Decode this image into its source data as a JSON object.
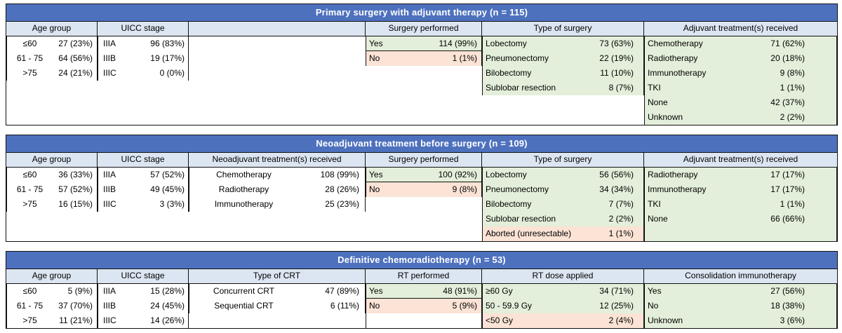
{
  "colors": {
    "title_bg": "#4E71BE",
    "title_text": "#FFFFFF",
    "subheader_bg": "#DCE6F2",
    "green_cell": "#E3EFDA",
    "red_cell": "#FBE3D5",
    "border": "#111111"
  },
  "panels": [
    {
      "id": "primary-surgery",
      "title": "Primary surgery with adjuvant therapy (n = 115)",
      "row_slots": 6,
      "blocks": [
        {
          "header": "Age group",
          "rows": [
            {
              "label": "≤60",
              "value": "27 (23%)",
              "bg": "plain"
            },
            {
              "label": "61 - 75",
              "value": "64 (56%)",
              "bg": "plain"
            },
            {
              "label": ">75",
              "value": "24 (21%)",
              "bg": "plain"
            }
          ]
        },
        {
          "header": "UICC stage",
          "rows": [
            {
              "label": "IIIA",
              "value": "96 (83%)",
              "bg": "plain"
            },
            {
              "label": "IIIB",
              "value": "19 (17%)",
              "bg": "plain"
            },
            {
              "label": "IIIC",
              "value": "0 (0%)",
              "bg": "plain"
            }
          ]
        },
        {
          "header": "",
          "rows": []
        },
        {
          "header": "Surgery performed",
          "box_first_row": true,
          "rows": [
            {
              "label": "Yes",
              "value": "114 (99%)",
              "bg": "green"
            },
            {
              "label": "No",
              "value": "1 (1%)",
              "bg": "red"
            }
          ]
        },
        {
          "header": "Type of surgery",
          "rows": [
            {
              "label": "Lobectomy",
              "value": "73 (63%)",
              "bg": "green"
            },
            {
              "label": "Pneumonectomy",
              "value": "22 (19%)",
              "bg": "green"
            },
            {
              "label": "Bilobectomy",
              "value": "11 (10%)",
              "bg": "green"
            },
            {
              "label": "Sublobar resection",
              "value": "8 (7%)",
              "bg": "green"
            }
          ]
        },
        {
          "header": "Adjuvant treatment(s) received",
          "rows": [
            {
              "label": "Chemotherapy",
              "value": "71 (62%)",
              "bg": "green"
            },
            {
              "label": "Radiotherapy",
              "value": "20 (18%)",
              "bg": "green"
            },
            {
              "label": "Immunotherapy",
              "value": "9 (8%)",
              "bg": "green"
            },
            {
              "label": "TKI",
              "value": "1 (1%)",
              "bg": "green"
            },
            {
              "label": "None",
              "value": "42 (37%)",
              "bg": "green"
            },
            {
              "label": "Unknown",
              "value": "2 (2%)",
              "bg": "green"
            }
          ]
        }
      ]
    },
    {
      "id": "neoadjuvant",
      "title": "Neoadjuvant treatment before surgery (n = 109)",
      "row_slots": 5,
      "blocks": [
        {
          "header": "Age group",
          "rows": [
            {
              "label": "≤60",
              "value": "36 (33%)",
              "bg": "plain"
            },
            {
              "label": "61 - 75",
              "value": "57 (52%)",
              "bg": "plain"
            },
            {
              "label": ">75",
              "value": "16 (15%)",
              "bg": "plain"
            }
          ]
        },
        {
          "header": "UICC stage",
          "rows": [
            {
              "label": "IIIA",
              "value": "57 (52%)",
              "bg": "plain"
            },
            {
              "label": "IIIB",
              "value": "49 (45%)",
              "bg": "plain"
            },
            {
              "label": "IIIC",
              "value": "3 (3%)",
              "bg": "plain"
            }
          ]
        },
        {
          "header": "Neoadjuvant treatment(s) received",
          "rows": [
            {
              "label": "Chemotherapy",
              "value": "108 (99%)",
              "bg": "plain"
            },
            {
              "label": "Radiotherapy",
              "value": "28 (26%)",
              "bg": "plain"
            },
            {
              "label": "Immunotherapy",
              "value": "25 (23%)",
              "bg": "plain"
            }
          ]
        },
        {
          "header": "Surgery performed",
          "box_first_row": true,
          "rows": [
            {
              "label": "Yes",
              "value": "100 (92%)",
              "bg": "green"
            },
            {
              "label": "No",
              "value": "9 (8%)",
              "bg": "red"
            }
          ]
        },
        {
          "header": "Type of surgery",
          "rows": [
            {
              "label": "Lobectomy",
              "value": "56 (56%)",
              "bg": "green"
            },
            {
              "label": "Pneumonectomy",
              "value": "34 (34%)",
              "bg": "green"
            },
            {
              "label": "Bilobectomy",
              "value": "7 (7%)",
              "bg": "green"
            },
            {
              "label": "Sublobar resection",
              "value": "2 (2%)",
              "bg": "green"
            },
            {
              "label": "Aborted (unresectable)",
              "value": "1 (1%)",
              "bg": "red"
            }
          ]
        },
        {
          "header": "Adjuvant treatment(s) received",
          "fill_rows": 1,
          "fill_bg": "green",
          "rows": [
            {
              "label": "Radiotherapy",
              "value": "17 (17%)",
              "bg": "green"
            },
            {
              "label": "Immunotherapy",
              "value": "17 (17%)",
              "bg": "green"
            },
            {
              "label": "TKI",
              "value": "1 (1%)",
              "bg": "green"
            },
            {
              "label": "None",
              "value": "66 (66%)",
              "bg": "green"
            }
          ]
        }
      ]
    },
    {
      "id": "definitive-crt",
      "title": "Definitive chemoradiotherapy (n = 53)",
      "row_slots": 3,
      "blocks": [
        {
          "header": "Age group",
          "rows": [
            {
              "label": "≤60",
              "value": "5 (9%)",
              "bg": "plain"
            },
            {
              "label": "61 - 75",
              "value": "37 (70%)",
              "bg": "plain"
            },
            {
              "label": ">75",
              "value": "11 (21%)",
              "bg": "plain"
            }
          ]
        },
        {
          "header": "UICC stage",
          "rows": [
            {
              "label": "IIIA",
              "value": "15 (28%)",
              "bg": "plain"
            },
            {
              "label": "IIIB",
              "value": "24 (45%)",
              "bg": "plain"
            },
            {
              "label": "IIIC",
              "value": "14 (26%)",
              "bg": "plain"
            }
          ]
        },
        {
          "header": "Type of CRT",
          "rows": [
            {
              "label": "Concurrent CRT",
              "value": "47 (89%)",
              "bg": "plain"
            },
            {
              "label": "Sequential CRT",
              "value": "6 (11%)",
              "bg": "plain"
            }
          ]
        },
        {
          "header": "RT performed",
          "box_first_row": true,
          "fill_rows": 1,
          "fill_bg": "plain",
          "rows": [
            {
              "label": "Yes",
              "value": "48 (91%)",
              "bg": "green"
            },
            {
              "label": "No",
              "value": "5 (9%)",
              "bg": "red"
            }
          ]
        },
        {
          "header": "RT dose applied",
          "rows": [
            {
              "label": "≥60 Gy",
              "value": "34 (71%)",
              "bg": "green"
            },
            {
              "label": "50 - 59.9 Gy",
              "value": "12 (25%)",
              "bg": "green"
            },
            {
              "label": "<50 Gy",
              "value": "2 (4%)",
              "bg": "red"
            }
          ]
        },
        {
          "header": "Consolidation immunotherapy",
          "rows": [
            {
              "label": "Yes",
              "value": "27 (56%)",
              "bg": "green"
            },
            {
              "label": "No",
              "value": "18 (38%)",
              "bg": "green"
            },
            {
              "label": "Unknown",
              "value": "3 (6%)",
              "bg": "green"
            }
          ]
        }
      ]
    }
  ]
}
